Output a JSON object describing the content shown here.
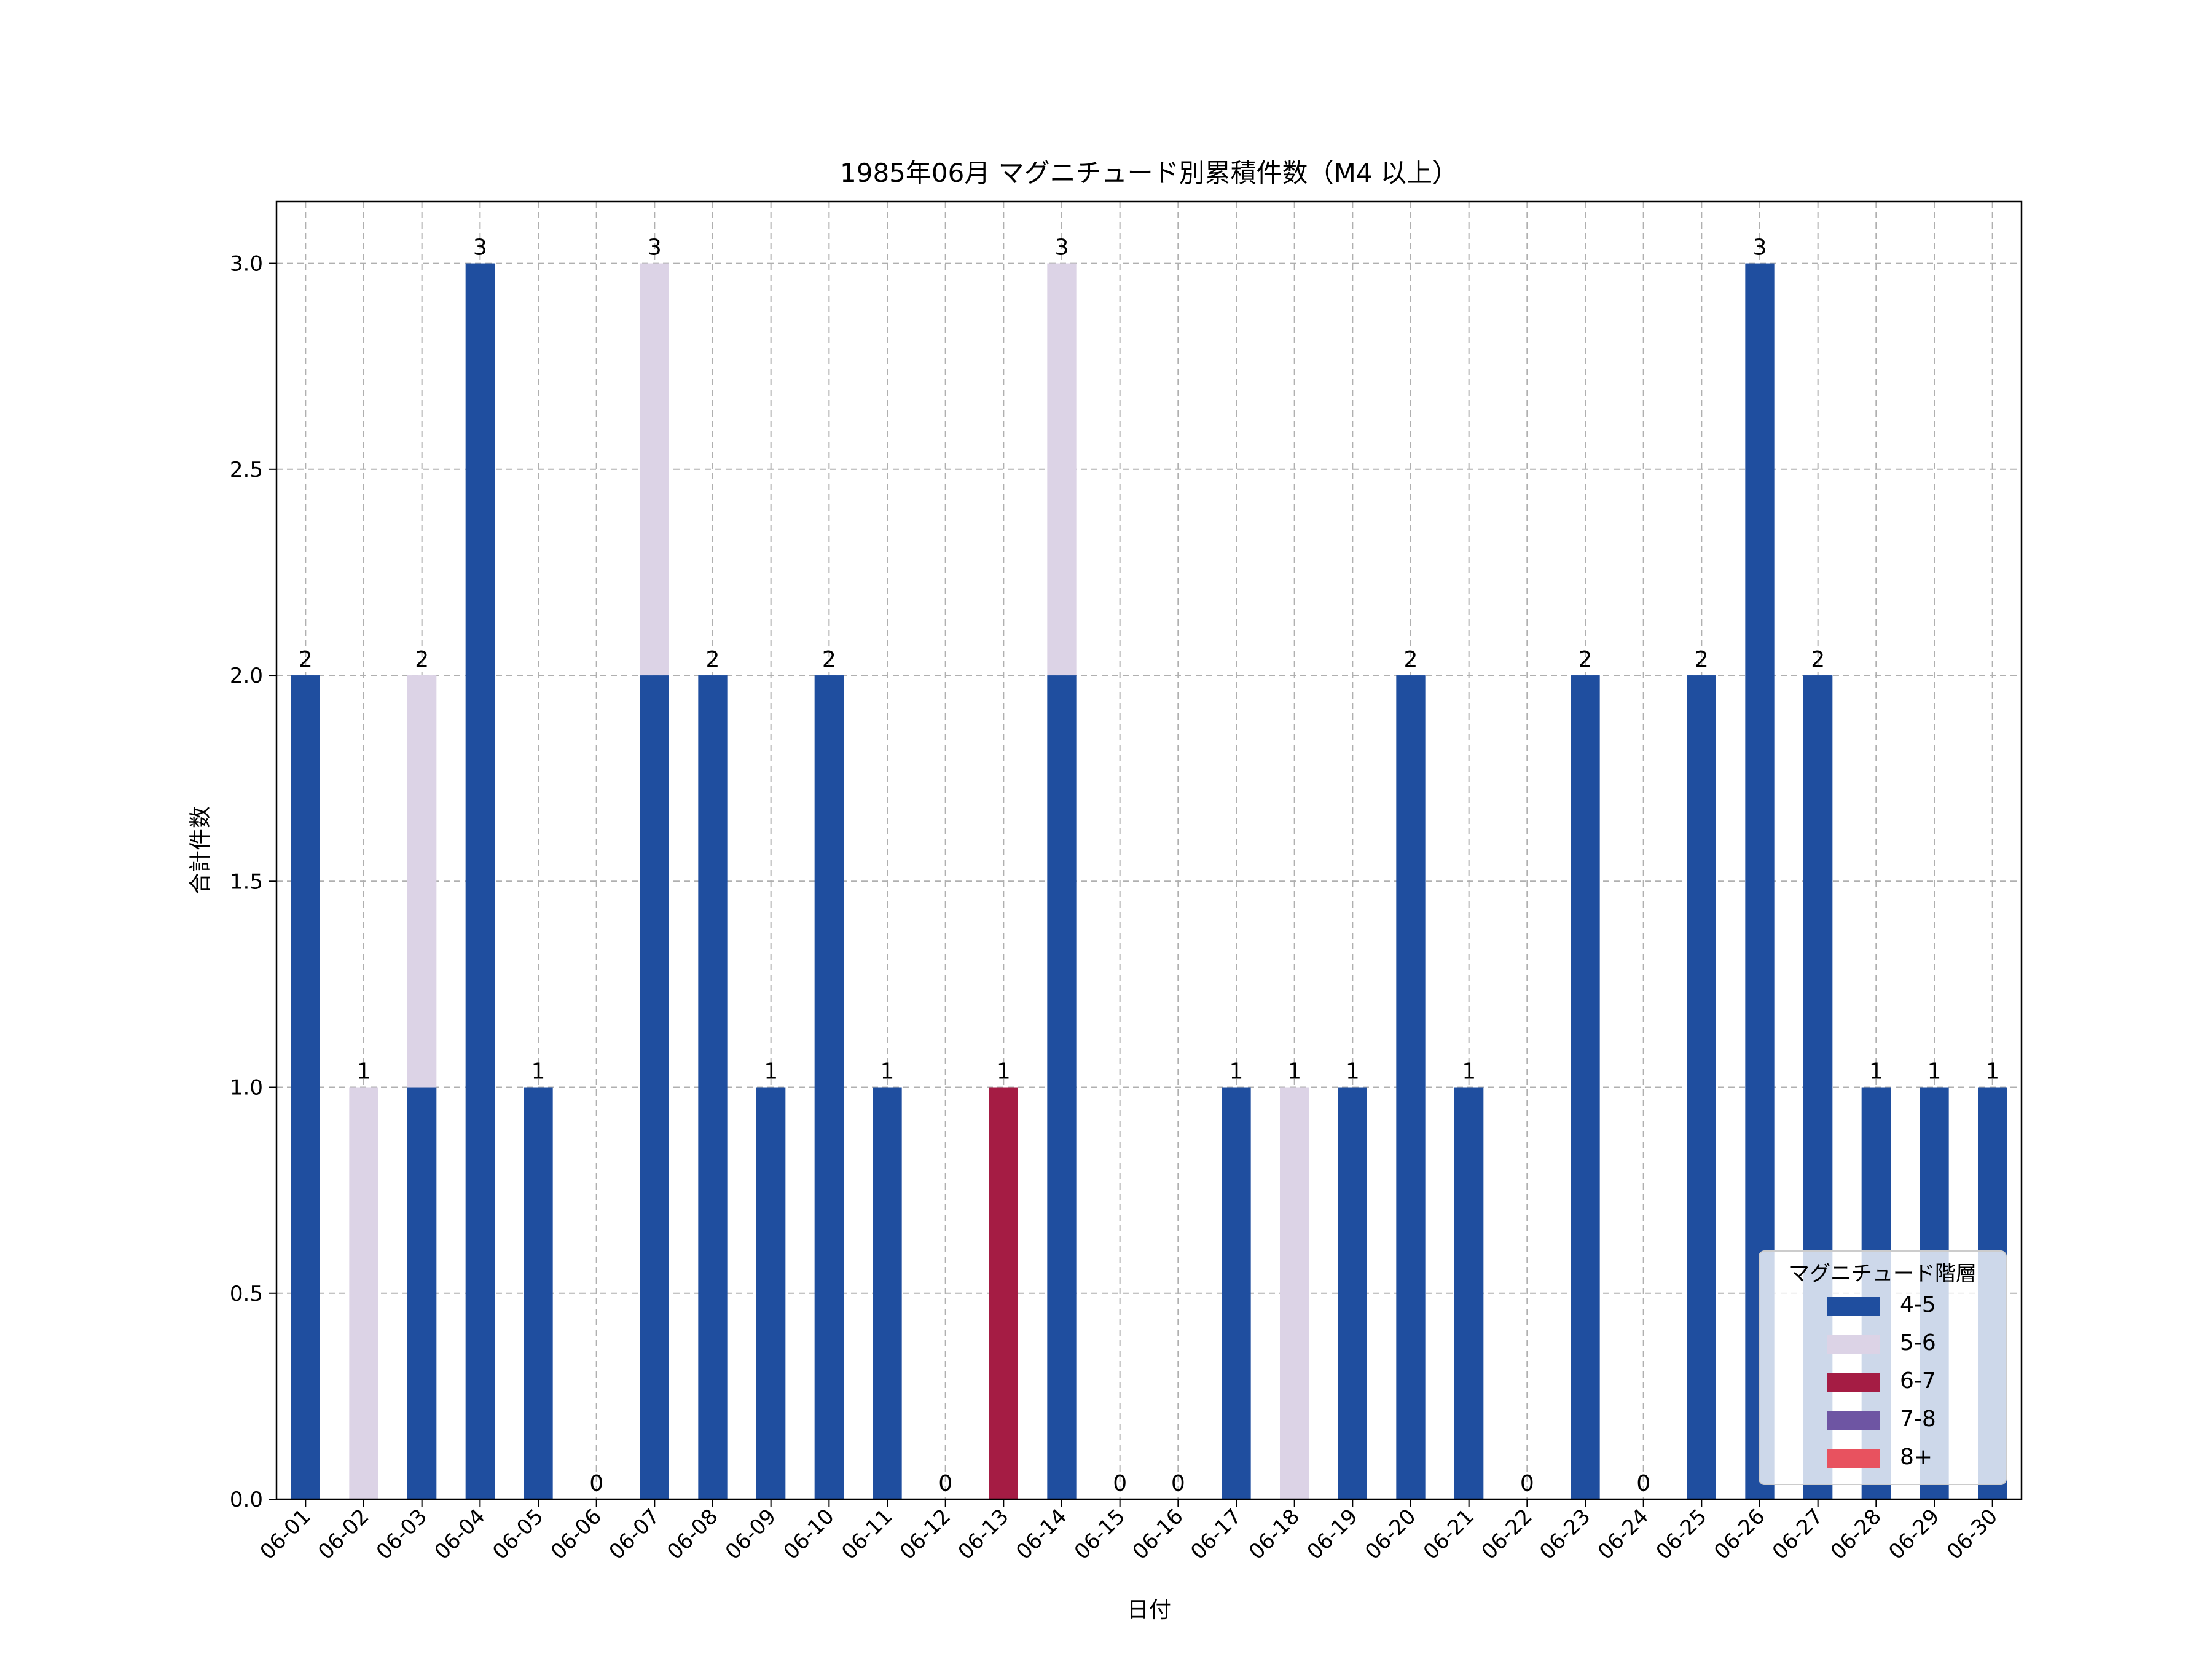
{
  "chart_data": {
    "type": "bar",
    "stacked": true,
    "title": "1985年06月 マグニチュード別累積件数（M4 以上）",
    "xlabel": "日付",
    "ylabel": "合計件数",
    "ylim": [
      0,
      3.15
    ],
    "yticks": [
      "0.0",
      "0.5",
      "1.0",
      "1.5",
      "2.0",
      "2.5",
      "3.0"
    ],
    "grid": true,
    "legend_title": "マグニチュード階層",
    "legend_position": "lower-right",
    "categories": [
      "06-01",
      "06-02",
      "06-03",
      "06-04",
      "06-05",
      "06-06",
      "06-07",
      "06-08",
      "06-09",
      "06-10",
      "06-11",
      "06-12",
      "06-13",
      "06-14",
      "06-15",
      "06-16",
      "06-17",
      "06-18",
      "06-19",
      "06-20",
      "06-21",
      "06-22",
      "06-23",
      "06-24",
      "06-25",
      "06-26",
      "06-27",
      "06-28",
      "06-29",
      "06-30"
    ],
    "series": [
      {
        "name": "4-5",
        "color": "#1f4e9f",
        "values": [
          2,
          0,
          1,
          3,
          1,
          0,
          2,
          2,
          1,
          2,
          1,
          0,
          0,
          2,
          0,
          0,
          1,
          0,
          1,
          2,
          1,
          0,
          2,
          0,
          2,
          3,
          2,
          1,
          1,
          1
        ]
      },
      {
        "name": "5-6",
        "color": "#dcd3e6",
        "values": [
          0,
          1,
          1,
          0,
          0,
          0,
          1,
          0,
          0,
          0,
          0,
          0,
          0,
          1,
          0,
          0,
          0,
          1,
          0,
          0,
          0,
          0,
          0,
          0,
          0,
          0,
          0,
          0,
          0,
          0
        ]
      },
      {
        "name": "6-7",
        "color": "#a51c44",
        "values": [
          0,
          0,
          0,
          0,
          0,
          0,
          0,
          0,
          0,
          0,
          0,
          0,
          1,
          0,
          0,
          0,
          0,
          0,
          0,
          0,
          0,
          0,
          0,
          0,
          0,
          0,
          0,
          0,
          0,
          0
        ]
      },
      {
        "name": "7-8",
        "color": "#6e55a3",
        "values": [
          0,
          0,
          0,
          0,
          0,
          0,
          0,
          0,
          0,
          0,
          0,
          0,
          0,
          0,
          0,
          0,
          0,
          0,
          0,
          0,
          0,
          0,
          0,
          0,
          0,
          0,
          0,
          0,
          0,
          0
        ]
      },
      {
        "name": "8+",
        "color": "#e8525f",
        "values": [
          0,
          0,
          0,
          0,
          0,
          0,
          0,
          0,
          0,
          0,
          0,
          0,
          0,
          0,
          0,
          0,
          0,
          0,
          0,
          0,
          0,
          0,
          0,
          0,
          0,
          0,
          0,
          0,
          0,
          0
        ]
      }
    ],
    "totals": [
      "2",
      "1",
      "2",
      "3",
      "1",
      "0",
      "3",
      "2",
      "1",
      "2",
      "1",
      "0",
      "1",
      "3",
      "0",
      "0",
      "1",
      "1",
      "1",
      "2",
      "1",
      "0",
      "2",
      "0",
      "2",
      "3",
      "2",
      "1",
      "1",
      "1"
    ]
  }
}
